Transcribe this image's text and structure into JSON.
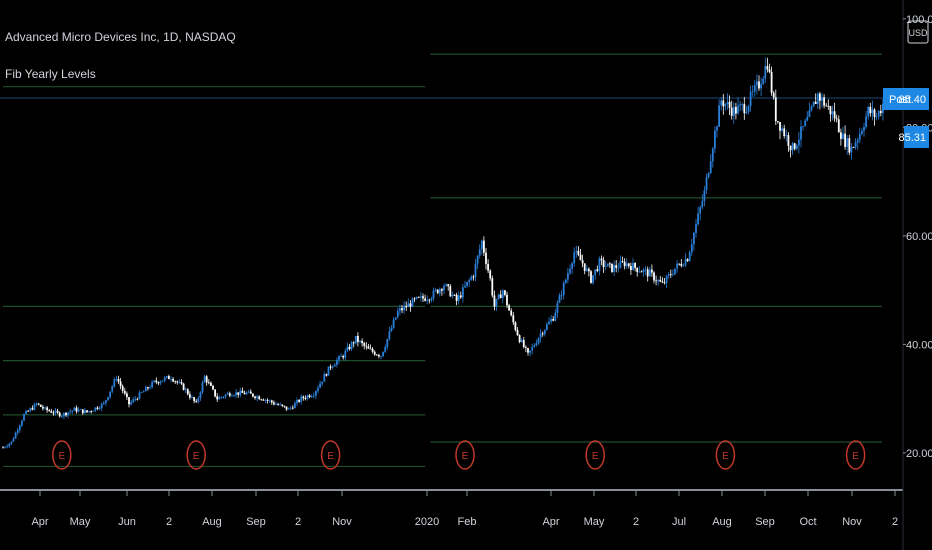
{
  "header": {
    "symbol_line": "Advanced Micro Devices Inc, 1D, NASDAQ",
    "indicator_name": "Fib Yearly Levels"
  },
  "currency_badge": "USD",
  "price_tags": {
    "post_label": "Post",
    "post_value": "85.40",
    "last_value": "85.31"
  },
  "colors": {
    "background": "#000000",
    "candle_up": "#2a7fd8",
    "candle_down": "#ffffff",
    "fib_line": "#1f4d2a",
    "price_line": "#1c4a7a",
    "earnings_marker": "#c0392b",
    "price_tag": "#1e88e5",
    "text": "#d1d4dc"
  },
  "chart_data": {
    "type": "candlestick",
    "title": "Advanced Micro Devices Inc, 1D, NASDAQ",
    "indicator": "Fib Yearly Levels",
    "ylim": [
      15,
      102
    ],
    "y_ticks": [
      "20.00",
      "40.00",
      "60.00",
      "80.00",
      "100.00"
    ],
    "x_ticks": [
      "Apr",
      "May",
      "Jun",
      "2",
      "Aug",
      "Sep",
      "2",
      "Nov",
      "2020",
      "Feb",
      "Apr",
      "May",
      "2",
      "Jul",
      "Aug",
      "Sep",
      "Oct",
      "Nov",
      "2"
    ],
    "price_path": [
      {
        "t": 0,
        "v": 21
      },
      {
        "t": 2,
        "v": 22
      },
      {
        "t": 5,
        "v": 27
      },
      {
        "t": 8,
        "v": 29
      },
      {
        "t": 10,
        "v": 28
      },
      {
        "t": 14,
        "v": 27
      },
      {
        "t": 17,
        "v": 28
      },
      {
        "t": 20,
        "v": 27.5
      },
      {
        "t": 24,
        "v": 29
      },
      {
        "t": 27,
        "v": 34
      },
      {
        "t": 30,
        "v": 29
      },
      {
        "t": 33,
        "v": 31
      },
      {
        "t": 36,
        "v": 33
      },
      {
        "t": 40,
        "v": 34
      },
      {
        "t": 43,
        "v": 32
      },
      {
        "t": 46,
        "v": 29
      },
      {
        "t": 48,
        "v": 34
      },
      {
        "t": 51,
        "v": 30
      },
      {
        "t": 54,
        "v": 31
      },
      {
        "t": 58,
        "v": 31
      },
      {
        "t": 62,
        "v": 30
      },
      {
        "t": 65,
        "v": 29
      },
      {
        "t": 68,
        "v": 28
      },
      {
        "t": 71,
        "v": 30
      },
      {
        "t": 74,
        "v": 31
      },
      {
        "t": 78,
        "v": 36
      },
      {
        "t": 81,
        "v": 38
      },
      {
        "t": 84,
        "v": 41
      },
      {
        "t": 87,
        "v": 39
      },
      {
        "t": 90,
        "v": 38
      },
      {
        "t": 94,
        "v": 46
      },
      {
        "t": 98,
        "v": 48
      },
      {
        "t": 102,
        "v": 49
      },
      {
        "t": 105,
        "v": 51
      },
      {
        "t": 108,
        "v": 48
      },
      {
        "t": 112,
        "v": 53
      },
      {
        "t": 114,
        "v": 59
      },
      {
        "t": 116,
        "v": 52
      },
      {
        "t": 117,
        "v": 47
      },
      {
        "t": 119,
        "v": 50
      },
      {
        "t": 121,
        "v": 45
      },
      {
        "t": 123,
        "v": 41
      },
      {
        "t": 125,
        "v": 38
      },
      {
        "t": 128,
        "v": 42
      },
      {
        "t": 131,
        "v": 45
      },
      {
        "t": 134,
        "v": 52
      },
      {
        "t": 136,
        "v": 57
      },
      {
        "t": 138,
        "v": 55
      },
      {
        "t": 140,
        "v": 52
      },
      {
        "t": 142,
        "v": 55
      },
      {
        "t": 145,
        "v": 54
      },
      {
        "t": 148,
        "v": 55
      },
      {
        "t": 151,
        "v": 54
      },
      {
        "t": 154,
        "v": 53
      },
      {
        "t": 157,
        "v": 51
      },
      {
        "t": 160,
        "v": 54
      },
      {
        "t": 163,
        "v": 56
      },
      {
        "t": 165,
        "v": 62
      },
      {
        "t": 167,
        "v": 68
      },
      {
        "t": 169,
        "v": 77
      },
      {
        "t": 171,
        "v": 85
      },
      {
        "t": 174,
        "v": 83
      },
      {
        "t": 177,
        "v": 84
      },
      {
        "t": 180,
        "v": 88
      },
      {
        "t": 182,
        "v": 92
      },
      {
        "t": 184,
        "v": 82
      },
      {
        "t": 186,
        "v": 79
      },
      {
        "t": 188,
        "v": 76
      },
      {
        "t": 190,
        "v": 79
      },
      {
        "t": 192,
        "v": 82
      },
      {
        "t": 194,
        "v": 86
      },
      {
        "t": 196,
        "v": 84
      },
      {
        "t": 198,
        "v": 82
      },
      {
        "t": 200,
        "v": 78
      },
      {
        "t": 202,
        "v": 76
      },
      {
        "t": 204,
        "v": 79
      },
      {
        "t": 206,
        "v": 83
      },
      {
        "t": 208,
        "v": 82
      },
      {
        "t": 210,
        "v": 85
      }
    ],
    "fib_levels_2019": [
      17.5,
      27,
      37,
      47,
      87.5
    ],
    "fib_levels_2020": [
      22,
      47,
      67,
      93.5
    ],
    "earnings_markers_t": [
      14,
      46,
      78,
      110,
      141,
      172,
      203
    ],
    "earnings_marker_label": "E",
    "last_price": 85.31,
    "post_market_price": 85.4
  }
}
